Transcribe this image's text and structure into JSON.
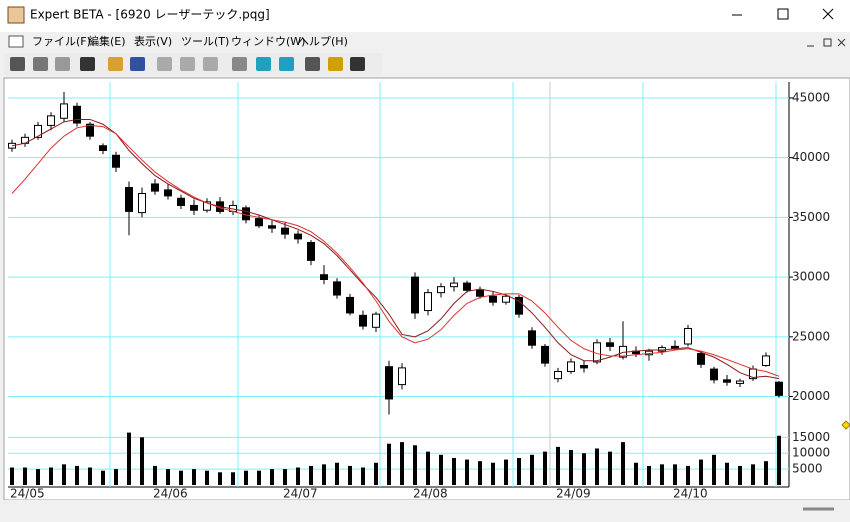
{
  "window": {
    "title": "Expert BETA - [6920 レーザーテック.pqg]",
    "menu": [
      "ファイル(F)",
      "編集(E)",
      "表示(V)",
      "ツール(T)",
      "ウィンドウ(W)",
      "ヘルプ(H)"
    ]
  },
  "chart_data": {
    "type": "candlestick",
    "categories": [
      "24/05",
      null,
      null,
      null,
      null,
      null,
      null,
      null,
      null,
      null,
      null,
      "24/06",
      null,
      null,
      null,
      null,
      null,
      null,
      null,
      null,
      null,
      "24/07",
      null,
      null,
      null,
      null,
      null,
      null,
      null,
      null,
      null,
      "24/08",
      null,
      null,
      null,
      null,
      null,
      null,
      null,
      null,
      null,
      null,
      "24/09",
      null,
      null,
      null,
      null,
      null,
      null,
      null,
      null,
      "24/10",
      null,
      null,
      null,
      null,
      null,
      null,
      null,
      null
    ],
    "open": [
      40800,
      41200,
      41700,
      42700,
      43300,
      44300,
      42800,
      41000,
      40200,
      37500,
      35400,
      37800,
      37300,
      36600,
      36000,
      35600,
      36300,
      35500,
      35800,
      34900,
      34300,
      34100,
      33600,
      32900,
      30200,
      29600,
      28300,
      26800,
      25800,
      22500,
      21000,
      30000,
      27200,
      28700,
      29200,
      29500,
      28900,
      28400,
      27900,
      28300,
      25500,
      24200,
      21500,
      22100,
      22600,
      22900,
      24500,
      23300,
      23800,
      23500,
      23800,
      24200,
      24400,
      23600,
      22300,
      21400,
      21100,
      21500,
      22600,
      21200
    ],
    "high": [
      41500,
      42000,
      43000,
      43800,
      45500,
      44600,
      43000,
      41200,
      40500,
      38000,
      37500,
      38200,
      37800,
      36900,
      36500,
      36600,
      36700,
      36400,
      36000,
      35200,
      34800,
      34600,
      33900,
      33100,
      31000,
      29900,
      28600,
      27200,
      27100,
      23000,
      22800,
      30400,
      29000,
      29500,
      30000,
      29700,
      29200,
      28800,
      28600,
      28500,
      25800,
      24400,
      22400,
      23200,
      23000,
      24800,
      24900,
      26300,
      24200,
      24000,
      24300,
      24700,
      26000,
      23800,
      22500,
      21800,
      21500,
      22600,
      23700,
      21300
    ],
    "low": [
      40500,
      40900,
      41500,
      42300,
      43000,
      42600,
      41500,
      40300,
      38800,
      33500,
      35000,
      36900,
      36500,
      35700,
      35200,
      35400,
      35300,
      35200,
      34500,
      34100,
      33700,
      33200,
      32800,
      31000,
      29400,
      28200,
      26800,
      25600,
      25400,
      18500,
      20600,
      26500,
      26800,
      28300,
      28800,
      28700,
      28200,
      27600,
      27700,
      26600,
      24000,
      22500,
      21200,
      21900,
      22000,
      22700,
      23800,
      23100,
      23300,
      23000,
      23500,
      23900,
      24200,
      22400,
      21100,
      20900,
      20800,
      21300,
      22500,
      19900
    ],
    "close": [
      41200,
      41700,
      42700,
      43500,
      44500,
      42900,
      41800,
      40600,
      39200,
      35500,
      37000,
      37200,
      36800,
      36000,
      35600,
      36300,
      35500,
      36000,
      34800,
      34300,
      34100,
      33600,
      33200,
      31400,
      29800,
      28500,
      27000,
      25900,
      26900,
      19800,
      22400,
      27000,
      28700,
      29200,
      29500,
      28900,
      28400,
      27900,
      28400,
      26900,
      24300,
      22800,
      22100,
      22900,
      22400,
      24500,
      24200,
      24200,
      23600,
      23800,
      24100,
      24000,
      25700,
      22700,
      21400,
      21200,
      21300,
      22300,
      23400,
      20100
    ],
    "series": [
      {
        "color": "#8b1a1a",
        "values": [
          41000,
          41200,
          41800,
          42400,
          43000,
          43200,
          43200,
          42800,
          42000,
          40600,
          39500,
          38500,
          37800,
          37200,
          36600,
          36200,
          35900,
          35700,
          35500,
          35200,
          34800,
          34400,
          34000,
          33500,
          32800,
          31800,
          30600,
          29400,
          28300,
          26900,
          25200,
          25000,
          25500,
          26500,
          27800,
          28800,
          29000,
          28800,
          28500,
          28000,
          27000,
          25800,
          24500,
          23500,
          23000,
          23000,
          23300,
          23700,
          23800,
          23900,
          23900,
          24000,
          24100,
          23700,
          23300,
          22700,
          22000,
          21600,
          21700,
          21500
        ]
      },
      {
        "color": "#e03030",
        "values": [
          37000,
          38200,
          39500,
          40800,
          41800,
          42500,
          42700,
          42600,
          42000,
          40900,
          39800,
          38800,
          38000,
          37300,
          36700,
          36200,
          35800,
          35500,
          35200,
          35000,
          34800,
          34600,
          34300,
          33800,
          33000,
          32000,
          30800,
          29500,
          28000,
          26300,
          25000,
          24500,
          24800,
          25600,
          26800,
          27800,
          28300,
          28500,
          28600,
          28600,
          28000,
          27000,
          25800,
          24700,
          24000,
          23600,
          23400,
          23400,
          23500,
          23600,
          23700,
          23900,
          24000,
          23800,
          23500,
          23100,
          22700,
          22300,
          22100,
          21700
        ]
      }
    ],
    "ylim": [
      17200,
      46000
    ],
    "yticks": [
      20000,
      25000,
      30000,
      35000,
      40000,
      45000
    ],
    "grid": true,
    "volume": {
      "color": "#000000",
      "values": [
        5500,
        5500,
        5000,
        5500,
        6500,
        6000,
        5500,
        4500,
        5000,
        16500,
        15000,
        6000,
        5000,
        4500,
        5000,
        4500,
        4000,
        4000,
        4500,
        4500,
        5000,
        5000,
        5500,
        6000,
        6500,
        7000,
        6000,
        5500,
        7000,
        13000,
        13500,
        12500,
        10500,
        9500,
        8500,
        8000,
        7500,
        7000,
        8000,
        8500,
        9500,
        10500,
        12000,
        11000,
        10000,
        11500,
        10500,
        13500,
        7000,
        6000,
        6500,
        6500,
        6000,
        8000,
        9500,
        7000,
        6000,
        6500,
        7500,
        15500
      ],
      "ylim": [
        0,
        17000
      ],
      "yticks": [
        5000,
        10000,
        15000
      ]
    }
  }
}
